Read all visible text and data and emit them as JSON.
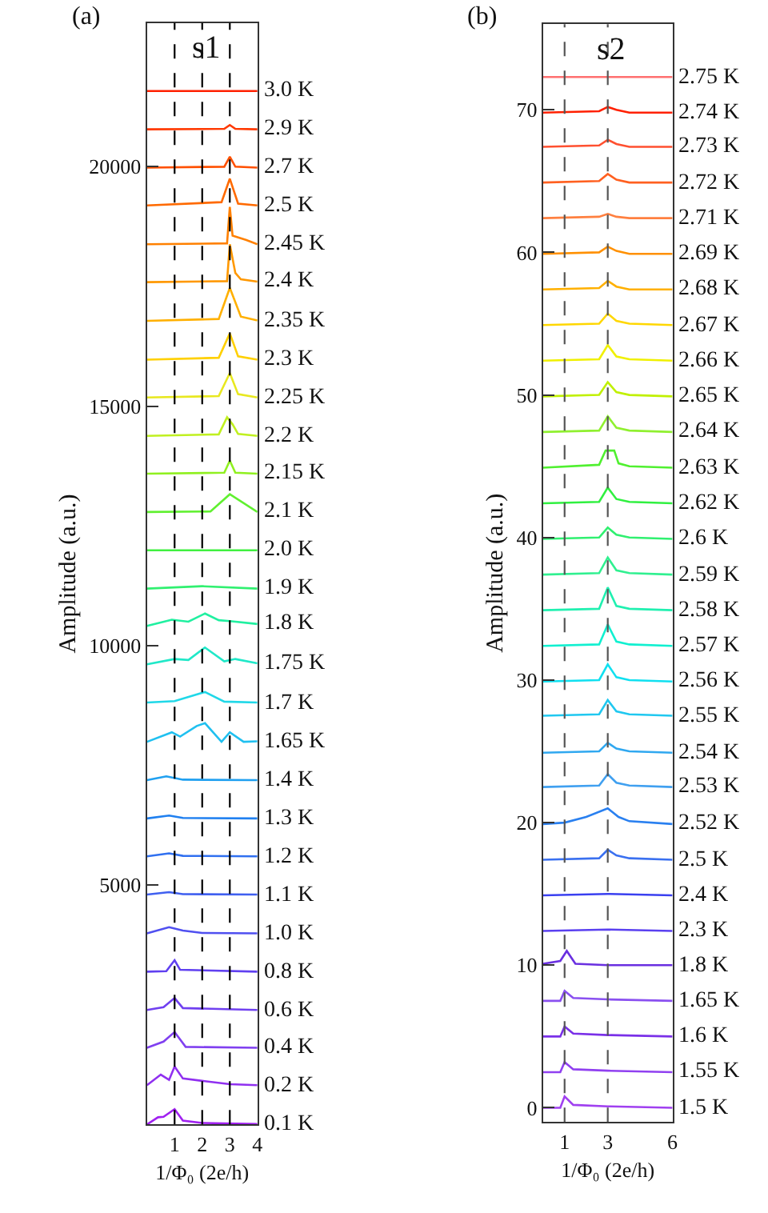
{
  "chart_data": [
    {
      "type": "line",
      "title": "(a)",
      "xlabel": "1/Φ₀ (2e/h)",
      "ylabel": "Amplitude (a.u.)",
      "annotations": [
        "s1"
      ],
      "xlim": [
        0,
        4
      ],
      "xticks": [
        1,
        2,
        3,
        4
      ],
      "ylim": [
        0,
        23000
      ],
      "yticks": [
        5000,
        10000,
        15000,
        20000
      ],
      "grid": false,
      "legend": false,
      "marker": "none",
      "line_style": "solid",
      "ref_lines": [
        {
          "axis": "x",
          "value": 1,
          "color": "#000000",
          "line_style": "dashed"
        },
        {
          "axis": "x",
          "value": 2,
          "color": "#000000",
          "line_style": "dashed"
        },
        {
          "axis": "x",
          "value": 3,
          "color": "#000000",
          "line_style": "dashed"
        }
      ],
      "series": [
        {
          "name": "0.1 K",
          "color": "#a020f0",
          "x": [
            0,
            0.4,
            0.6,
            1,
            1.3,
            2,
            4
          ],
          "values": [
            0,
            150,
            160,
            320,
            80,
            30,
            10
          ]
        },
        {
          "name": "0.2 K",
          "color": "#9030f0",
          "x": [
            0,
            0.5,
            0.8,
            1,
            1.3,
            2,
            3,
            4
          ],
          "values": [
            820,
            1040,
            930,
            1210,
            960,
            910,
            840,
            820
          ]
        },
        {
          "name": "0.4 K",
          "color": "#8040f0",
          "x": [
            0,
            0.6,
            1,
            1.4,
            4
          ],
          "values": [
            1600,
            1730,
            1930,
            1620,
            1600
          ]
        },
        {
          "name": "0.6 K",
          "color": "#7040f0",
          "x": [
            0,
            0.6,
            1,
            1.3,
            4
          ],
          "values": [
            2390,
            2450,
            2640,
            2430,
            2390
          ]
        },
        {
          "name": "0.8 K",
          "color": "#6040f0",
          "x": [
            0,
            0.7,
            1,
            1.2,
            4
          ],
          "values": [
            3190,
            3200,
            3430,
            3230,
            3190
          ]
        },
        {
          "name": "1.0 K",
          "color": "#5050f0",
          "x": [
            0,
            0.8,
            1.3,
            2,
            4
          ],
          "values": [
            3990,
            4120,
            4050,
            4000,
            3990
          ]
        },
        {
          "name": "1.1 K",
          "color": "#4060f0",
          "x": [
            0,
            0.8,
            1.3,
            4
          ],
          "values": [
            4800,
            4850,
            4810,
            4800
          ]
        },
        {
          "name": "1.2 K",
          "color": "#3070f0",
          "x": [
            0,
            0.8,
            1.3,
            4
          ],
          "values": [
            5600,
            5660,
            5610,
            5600
          ]
        },
        {
          "name": "1.3 K",
          "color": "#2080f0",
          "x": [
            0,
            0.8,
            1.3,
            4
          ],
          "values": [
            6390,
            6450,
            6400,
            6390
          ]
        },
        {
          "name": "1.4 K",
          "color": "#20a0f0",
          "x": [
            0,
            0.7,
            1.3,
            4
          ],
          "values": [
            7190,
            7270,
            7200,
            7190
          ]
        },
        {
          "name": "1.65 K",
          "color": "#20c0f0",
          "x": [
            0,
            0.9,
            1.2,
            1.8,
            2.1,
            2.7,
            3,
            3.5,
            4
          ],
          "values": [
            7990,
            8190,
            8100,
            8320,
            8380,
            7990,
            8190,
            7990,
            8000
          ]
        },
        {
          "name": "1.7 K",
          "color": "#20d8e8",
          "x": [
            0,
            1,
            2.1,
            2.8,
            4
          ],
          "values": [
            8810,
            8840,
            9030,
            8830,
            8810
          ]
        },
        {
          "name": "1.75 K",
          "color": "#20e8c8",
          "x": [
            0,
            1,
            1.5,
            2.1,
            2.8,
            3.2,
            4
          ],
          "values": [
            9610,
            9720,
            9700,
            9960,
            9670,
            9720,
            9630
          ]
        },
        {
          "name": "1.8 K",
          "color": "#20f0a0",
          "x": [
            0,
            0.9,
            1.5,
            2.1,
            2.6,
            3,
            4
          ],
          "values": [
            10410,
            10540,
            10500,
            10670,
            10530,
            10510,
            10450
          ]
        },
        {
          "name": "1.9 K",
          "color": "#30f070",
          "x": [
            0,
            2,
            4
          ],
          "values": [
            11190,
            11240,
            11190
          ]
        },
        {
          "name": "2.0 K",
          "color": "#40f040",
          "x": [
            0,
            4
          ],
          "values": [
            11990,
            11990
          ]
        },
        {
          "name": "2.1 K",
          "color": "#60f030",
          "x": [
            0,
            2.3,
            3,
            4
          ],
          "values": [
            12790,
            12800,
            13160,
            12790
          ]
        },
        {
          "name": "2.15 K",
          "color": "#90f020",
          "x": [
            0,
            2.8,
            3,
            3.2,
            4
          ],
          "values": [
            13590,
            13610,
            13860,
            13610,
            13590
          ]
        },
        {
          "name": "2.2 K",
          "color": "#c0f020",
          "x": [
            0,
            2.6,
            2.9,
            3.1,
            3.3,
            4
          ],
          "values": [
            14380,
            14410,
            14770,
            14620,
            14420,
            14380
          ]
        },
        {
          "name": "2.25 K",
          "color": "#e8e820",
          "x": [
            0,
            2.6,
            3,
            3.3,
            4
          ],
          "values": [
            15180,
            15210,
            15690,
            15250,
            15180
          ]
        },
        {
          "name": "2.3 K",
          "color": "#ffd000",
          "x": [
            0,
            2.6,
            3,
            3.3,
            4
          ],
          "values": [
            15970,
            16010,
            16520,
            16040,
            15970
          ]
        },
        {
          "name": "2.35 K",
          "color": "#ffb000",
          "x": [
            0,
            2.6,
            3,
            3.4,
            4
          ],
          "values": [
            16780,
            16820,
            17470,
            16870,
            16790
          ]
        },
        {
          "name": "2.4 K",
          "color": "#ff9800",
          "x": [
            0,
            2.9,
            3,
            3.2,
            3.4,
            4
          ],
          "values": [
            17590,
            17610,
            18380,
            17780,
            17650,
            17600
          ]
        },
        {
          "name": "2.45 K",
          "color": "#ff8000",
          "x": [
            0,
            2.9,
            3,
            3.1,
            3.6,
            4
          ],
          "values": [
            18380,
            18400,
            19160,
            18560,
            18470,
            18380
          ]
        },
        {
          "name": "2.5 K",
          "color": "#ff6a00",
          "x": [
            0,
            2.7,
            3,
            3.3,
            4
          ],
          "values": [
            19190,
            19260,
            19750,
            19230,
            19190
          ]
        },
        {
          "name": "2.7 K",
          "color": "#ff5000",
          "x": [
            0,
            2.8,
            3,
            3.2,
            4
          ],
          "values": [
            19980,
            20000,
            20210,
            20000,
            19980
          ]
        },
        {
          "name": "2.9 K",
          "color": "#ff3800",
          "x": [
            0,
            2.8,
            3,
            3.2,
            4
          ],
          "values": [
            20780,
            20790,
            20870,
            20790,
            20780
          ]
        },
        {
          "name": "3.0 K",
          "color": "#ff2000",
          "x": [
            0,
            4
          ],
          "values": [
            21580,
            21580
          ]
        }
      ]
    },
    {
      "type": "line",
      "title": "(b)",
      "xlabel": "1/Φ₀ (2e/h)",
      "ylabel": "Amplitude (a.u.)",
      "annotations": [
        "s2"
      ],
      "xlim": [
        0,
        6
      ],
      "xticks": [
        1,
        3,
        6
      ],
      "ylim": [
        -1,
        76
      ],
      "yticks": [
        0,
        10,
        20,
        30,
        40,
        50,
        60,
        70
      ],
      "grid": false,
      "legend": false,
      "marker": "none",
      "line_style": "solid",
      "ref_lines": [
        {
          "axis": "x",
          "value": 1,
          "color": "#555555",
          "line_style": "dashed"
        },
        {
          "axis": "x",
          "value": 3,
          "color": "#555555",
          "line_style": "dashed"
        }
      ],
      "series": [
        {
          "name": "1.5 K",
          "color": "#a040f0",
          "x": [
            0,
            0.8,
            1,
            1.4,
            3,
            6
          ],
          "values": [
            0,
            0,
            0.8,
            0.2,
            0.1,
            0
          ]
        },
        {
          "name": "1.55 K",
          "color": "#9040f0",
          "x": [
            0,
            0.8,
            1,
            1.4,
            3,
            6
          ],
          "values": [
            2.5,
            2.5,
            3.2,
            2.7,
            2.6,
            2.5
          ]
        },
        {
          "name": "1.6 K",
          "color": "#7a30e8",
          "x": [
            0,
            0.8,
            1,
            1.4,
            3,
            6
          ],
          "values": [
            5.0,
            5.0,
            5.7,
            5.2,
            5.1,
            5.0
          ]
        },
        {
          "name": "1.65 K",
          "color": "#8a50f0",
          "x": [
            0,
            0.8,
            1,
            1.4,
            3,
            6
          ],
          "values": [
            7.5,
            7.5,
            8.2,
            7.7,
            7.6,
            7.5
          ]
        },
        {
          "name": "1.8 K",
          "color": "#6a30e0",
          "x": [
            0,
            0.8,
            1.1,
            1.5,
            3,
            6
          ],
          "values": [
            10.1,
            10.3,
            11.0,
            10.1,
            10.0,
            10.0
          ]
        },
        {
          "name": "2.3 K",
          "color": "#5a40f0",
          "x": [
            0,
            3,
            6
          ],
          "values": [
            12.4,
            12.5,
            12.4
          ]
        },
        {
          "name": "2.4 K",
          "color": "#3a40f0",
          "x": [
            0,
            3,
            6
          ],
          "values": [
            14.9,
            15.0,
            14.9
          ]
        },
        {
          "name": "2.5 K",
          "color": "#3a70f0",
          "x": [
            0,
            2.6,
            3,
            3.4,
            4,
            6
          ],
          "values": [
            17.4,
            17.5,
            18.1,
            17.7,
            17.5,
            17.4
          ]
        },
        {
          "name": "2.52 K",
          "color": "#2a80f0",
          "x": [
            0,
            1,
            2,
            3,
            3.5,
            4,
            6
          ],
          "values": [
            19.9,
            20.0,
            20.4,
            21.0,
            20.4,
            20.1,
            19.9
          ]
        },
        {
          "name": "2.53 K",
          "color": "#40a0f0",
          "x": [
            0,
            2.6,
            3,
            3.4,
            4,
            6
          ],
          "values": [
            22.5,
            22.6,
            23.4,
            22.8,
            22.6,
            22.5
          ]
        },
        {
          "name": "2.54 K",
          "color": "#30a8f0",
          "x": [
            0,
            2.6,
            3,
            3.4,
            4,
            6
          ],
          "values": [
            24.9,
            25.0,
            25.6,
            25.2,
            25.0,
            24.9
          ]
        },
        {
          "name": "2.55 K",
          "color": "#20c8f0",
          "x": [
            0,
            2.6,
            3,
            3.4,
            4,
            6
          ],
          "values": [
            27.5,
            27.6,
            28.6,
            27.8,
            27.6,
            27.5
          ]
        },
        {
          "name": "2.56 K",
          "color": "#10e0f0",
          "x": [
            0,
            2.6,
            3,
            3.4,
            4,
            6
          ],
          "values": [
            29.9,
            30.0,
            31.1,
            30.2,
            30.0,
            29.9
          ]
        },
        {
          "name": "2.57 K",
          "color": "#10f0d0",
          "x": [
            0,
            2.6,
            3,
            3.4,
            4,
            6
          ],
          "values": [
            32.4,
            32.5,
            33.9,
            32.7,
            32.5,
            32.4
          ]
        },
        {
          "name": "2.58 K",
          "color": "#20f0b0",
          "x": [
            0,
            2.6,
            3,
            3.4,
            4,
            6
          ],
          "values": [
            34.9,
            35.0,
            36.5,
            35.2,
            35.0,
            34.9
          ]
        },
        {
          "name": "2.59 K",
          "color": "#30f090",
          "x": [
            0,
            2.6,
            3,
            3.4,
            4,
            6
          ],
          "values": [
            37.4,
            37.5,
            38.6,
            37.7,
            37.5,
            37.4
          ]
        },
        {
          "name": "2.6 K",
          "color": "#30f070",
          "x": [
            0,
            2.6,
            3,
            3.4,
            4,
            6
          ],
          "values": [
            39.9,
            40.0,
            40.7,
            40.2,
            40.0,
            39.9
          ]
        },
        {
          "name": "2.62 K",
          "color": "#30f040",
          "x": [
            0,
            2.6,
            3,
            3.4,
            4,
            6
          ],
          "values": [
            42.4,
            42.5,
            43.5,
            42.7,
            42.5,
            42.4
          ]
        },
        {
          "name": "2.63 K",
          "color": "#50f030",
          "x": [
            0,
            2.6,
            2.9,
            3.3,
            3.5,
            4,
            6
          ],
          "values": [
            44.9,
            45.1,
            46.1,
            46.1,
            45.2,
            45.0,
            44.9
          ]
        },
        {
          "name": "2.64 K",
          "color": "#90f030",
          "x": [
            0,
            2.6,
            3,
            3.4,
            4,
            6
          ],
          "values": [
            47.4,
            47.5,
            48.5,
            47.7,
            47.5,
            47.4
          ]
        },
        {
          "name": "2.65 K",
          "color": "#c0f000",
          "x": [
            0,
            2.6,
            3,
            3.4,
            4,
            6
          ],
          "values": [
            49.9,
            50.0,
            50.9,
            50.2,
            50.0,
            49.9
          ]
        },
        {
          "name": "2.66 K",
          "color": "#f0f000",
          "x": [
            0,
            2.6,
            3,
            3.4,
            4,
            6
          ],
          "values": [
            52.4,
            52.5,
            53.5,
            52.7,
            52.5,
            52.4
          ]
        },
        {
          "name": "2.67 K",
          "color": "#ffd700",
          "x": [
            0,
            2.6,
            3,
            3.4,
            4,
            6
          ],
          "values": [
            54.9,
            55.0,
            55.7,
            55.2,
            55.0,
            54.9
          ]
        },
        {
          "name": "2.68 K",
          "color": "#ffb000",
          "x": [
            0,
            2.6,
            3,
            3.4,
            4,
            6
          ],
          "values": [
            57.4,
            57.5,
            58.0,
            57.6,
            57.4,
            57.4
          ]
        },
        {
          "name": "2.69 K",
          "color": "#ff9000",
          "x": [
            0,
            2.6,
            3,
            3.4,
            4,
            6
          ],
          "values": [
            59.9,
            60.0,
            60.4,
            60.1,
            59.9,
            59.9
          ]
        },
        {
          "name": "2.71 K",
          "color": "#ff8040",
          "x": [
            0,
            2.6,
            3,
            3.4,
            4,
            6
          ],
          "values": [
            62.4,
            62.5,
            62.7,
            62.5,
            62.4,
            62.4
          ]
        },
        {
          "name": "2.72 K",
          "color": "#ff6020",
          "x": [
            0,
            2.6,
            3,
            3.4,
            4,
            6
          ],
          "values": [
            64.9,
            65.0,
            65.5,
            65.1,
            64.9,
            64.9
          ]
        },
        {
          "name": "2.73 K",
          "color": "#ff5030",
          "x": [
            0,
            2.6,
            3,
            3.4,
            4,
            6
          ],
          "values": [
            67.4,
            67.5,
            67.9,
            67.6,
            67.4,
            67.4
          ]
        },
        {
          "name": "2.74 K",
          "color": "#ff2000",
          "x": [
            0,
            2.6,
            3,
            3.4,
            4,
            6
          ],
          "values": [
            69.8,
            69.9,
            70.2,
            70.0,
            69.8,
            69.8
          ]
        },
        {
          "name": "2.75 K",
          "color": "#ff7070",
          "x": [
            0,
            6
          ],
          "values": [
            72.3,
            72.3
          ]
        }
      ]
    }
  ]
}
